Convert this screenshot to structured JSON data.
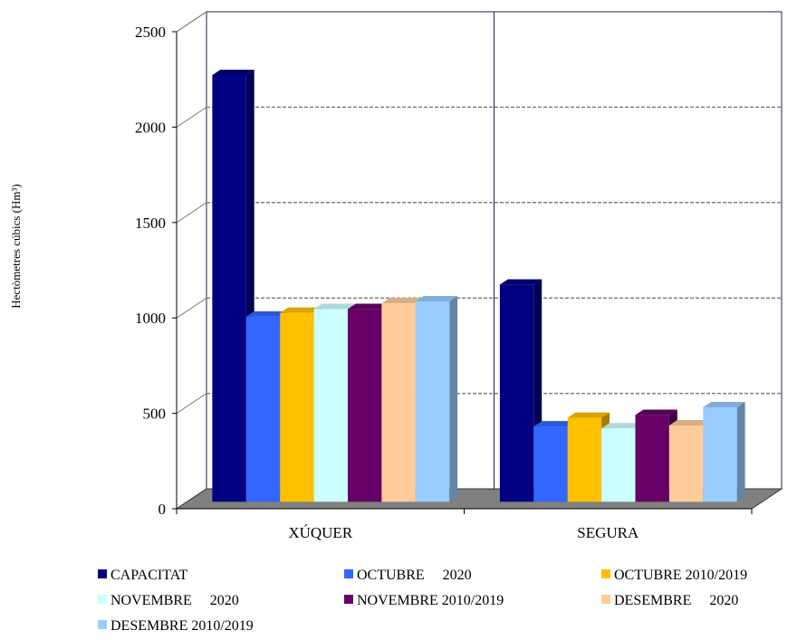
{
  "chart_data": {
    "type": "bar",
    "title": "",
    "ylabel": "Hectòmetres cúbics (Hm³)",
    "xlabel": "",
    "ylim": [
      0,
      2500
    ],
    "yticks": [
      0,
      500,
      1000,
      1500,
      2000,
      2500
    ],
    "categories": [
      "XÚQUER",
      "SEGURA"
    ],
    "grid": "horizontal dashed",
    "legend_position": "bottom",
    "series": [
      {
        "name": "CAPACITAT",
        "color": "#000080",
        "values": [
          2236,
          1138
        ]
      },
      {
        "name": "OCTUBRE     2020",
        "color": "#3366ff",
        "values": [
          970,
          395
        ]
      },
      {
        "name": "OCTUBRE 2010/2019",
        "color": "#ffc000",
        "values": [
          990,
          440
        ]
      },
      {
        "name": "NOVEMBRE     2020",
        "color": "#ccffff",
        "values": [
          1010,
          385
        ]
      },
      {
        "name": "NOVEMBRE 2010/2019",
        "color": "#660066",
        "values": [
          1010,
          455
        ]
      },
      {
        "name": "DESEMBRE     2020",
        "color": "#ffcc99",
        "values": [
          1040,
          400
        ]
      },
      {
        "name": "DESEMBRE 2010/2019",
        "color": "#99ccff",
        "values": [
          1050,
          495
        ]
      }
    ]
  }
}
